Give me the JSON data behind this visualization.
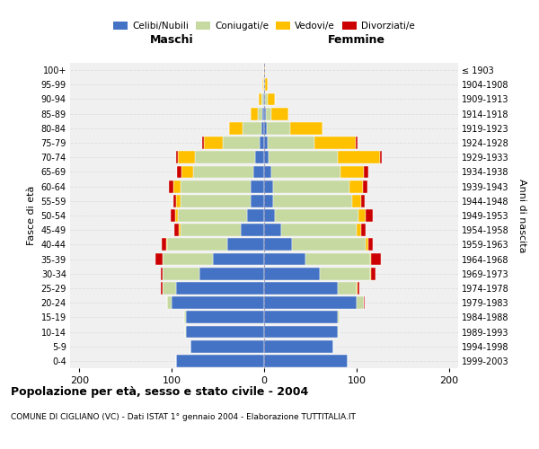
{
  "age_groups": [
    "0-4",
    "5-9",
    "10-14",
    "15-19",
    "20-24",
    "25-29",
    "30-34",
    "35-39",
    "40-44",
    "45-49",
    "50-54",
    "55-59",
    "60-64",
    "65-69",
    "70-74",
    "75-79",
    "80-84",
    "85-89",
    "90-94",
    "95-99",
    "100+"
  ],
  "birth_years": [
    "1999-2003",
    "1994-1998",
    "1989-1993",
    "1984-1988",
    "1979-1983",
    "1974-1978",
    "1969-1973",
    "1964-1968",
    "1959-1963",
    "1954-1958",
    "1949-1953",
    "1944-1948",
    "1939-1943",
    "1934-1938",
    "1929-1933",
    "1924-1928",
    "1919-1923",
    "1914-1918",
    "1909-1913",
    "1904-1908",
    "≤ 1903"
  ],
  "maschi_celibe": [
    95,
    80,
    85,
    85,
    100,
    95,
    70,
    55,
    40,
    25,
    18,
    15,
    15,
    12,
    10,
    5,
    3,
    2,
    1,
    0,
    0
  ],
  "maschi_coniugato": [
    0,
    0,
    1,
    2,
    5,
    15,
    40,
    55,
    65,
    65,
    75,
    75,
    75,
    65,
    65,
    40,
    20,
    5,
    2,
    1,
    0
  ],
  "maschi_vedovo": [
    0,
    0,
    0,
    0,
    0,
    0,
    0,
    0,
    1,
    2,
    3,
    5,
    8,
    12,
    18,
    20,
    15,
    8,
    3,
    1,
    0
  ],
  "maschi_divorziato": [
    0,
    0,
    0,
    0,
    0,
    2,
    2,
    8,
    5,
    5,
    5,
    3,
    5,
    5,
    2,
    2,
    0,
    0,
    0,
    0,
    0
  ],
  "femmine_celibe": [
    90,
    75,
    80,
    80,
    100,
    80,
    60,
    45,
    30,
    18,
    12,
    10,
    10,
    8,
    5,
    4,
    3,
    2,
    1,
    0,
    0
  ],
  "femmine_coniugato": [
    0,
    0,
    1,
    2,
    8,
    20,
    55,
    70,
    80,
    82,
    90,
    85,
    82,
    75,
    75,
    50,
    25,
    6,
    3,
    1,
    0
  ],
  "femmine_vedovo": [
    0,
    0,
    0,
    0,
    0,
    1,
    1,
    1,
    3,
    5,
    8,
    10,
    15,
    25,
    45,
    45,
    35,
    18,
    8,
    3,
    1
  ],
  "femmine_divorziato": [
    0,
    0,
    0,
    0,
    1,
    2,
    5,
    10,
    5,
    5,
    8,
    4,
    5,
    5,
    2,
    2,
    0,
    0,
    0,
    0,
    0
  ],
  "color_celibe": "#4472c4",
  "color_coniugato": "#c5d9a0",
  "color_vedovo": "#ffc000",
  "color_divorziato": "#cc0000",
  "title": "Popolazione per età, sesso e stato civile - 2004",
  "subtitle": "COMUNE DI CIGLIANO (VC) - Dati ISTAT 1° gennaio 2004 - Elaborazione TUTTITALIA.IT",
  "xlabel_maschi": "Maschi",
  "xlabel_femmine": "Femmine",
  "ylabel_left": "Fasce di età",
  "ylabel_right": "Anni di nascita",
  "xlim": 210,
  "background_color": "#ffffff",
  "plot_bg": "#f0f0f0",
  "grid_color": "#dddddd"
}
